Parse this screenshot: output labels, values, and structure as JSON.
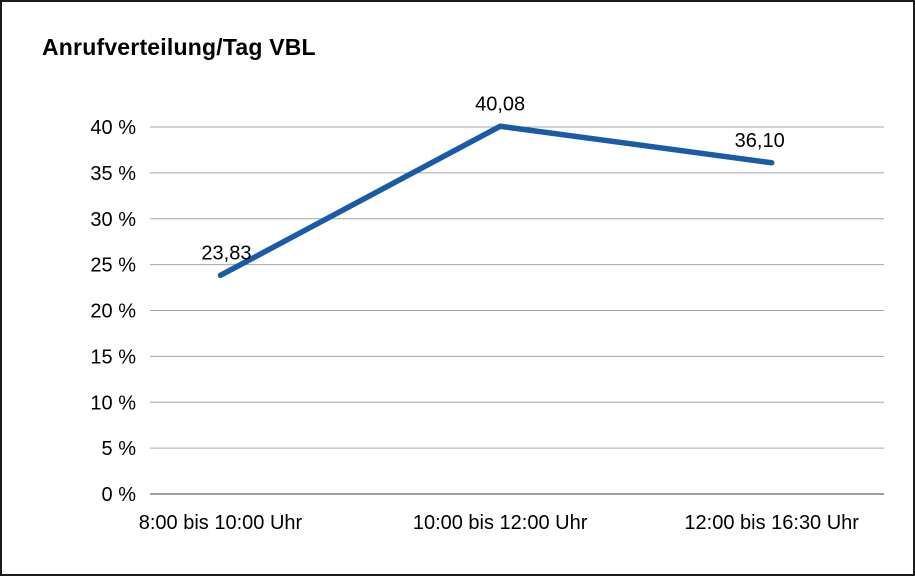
{
  "title": "Anrufverteilung/Tag VBL",
  "colors": {
    "line": "#1a5ba6",
    "grid": "#a6a6a6",
    "axis": "#7f7f7f",
    "text": "#000000",
    "border": "#1a1a1a"
  },
  "chart_data": {
    "type": "line",
    "title": "Anrufverteilung/Tag VBL",
    "categories": [
      "8:00 bis 10:00 Uhr",
      "10:00 bis 12:00 Uhr",
      "12:00 bis 16:30 Uhr"
    ],
    "values": [
      23.83,
      40.08,
      36.1
    ],
    "value_labels": [
      "23,83",
      "40,08",
      "36,10"
    ],
    "xlabel": "",
    "ylabel": "",
    "ylim": [
      0,
      40
    ],
    "ytick_step": 5,
    "ytick_labels": [
      "0 %",
      "5 %",
      "10 %",
      "15 %",
      "20 %",
      "25 %",
      "30 %",
      "35 %",
      "40 %"
    ],
    "grid": true,
    "legend": false
  }
}
